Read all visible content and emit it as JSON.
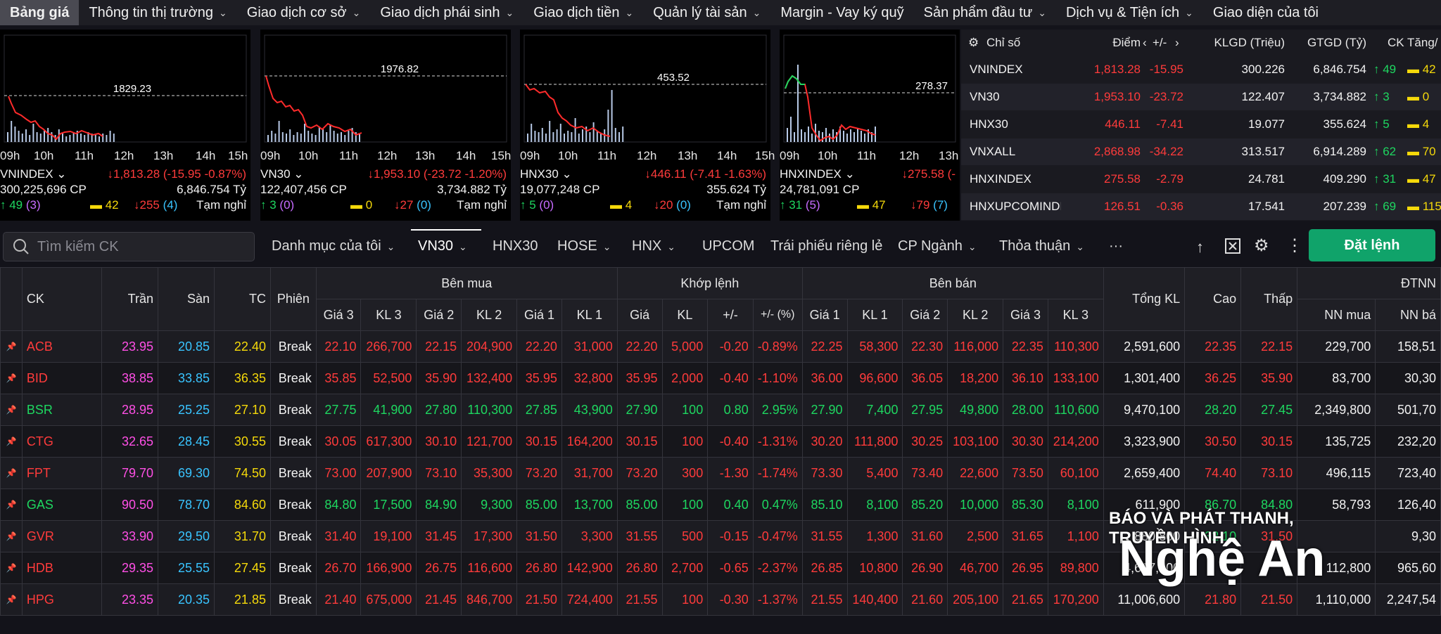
{
  "nav": [
    "Bảng giá",
    "Thông tin thị trường",
    "Giao dịch cơ sở",
    "Giao dịch phái sinh",
    "Giao dịch tiền",
    "Quản lý tài sản",
    "Margin - Vay ký quỹ",
    "Sản phẩm đầu tư",
    "Dịch vụ & Tiện ích",
    "Giao diện của tôi"
  ],
  "colors": {
    "ceiling": "#ff4fe6",
    "floor": "#39c4ff",
    "ref": "#f5d90a",
    "up": "#1ed760",
    "down": "#ff3b3b",
    "accent": "#10a36a"
  },
  "charts": [
    {
      "name": "VNINDEX",
      "ref": "1829.23",
      "times": [
        "09h",
        "10h",
        "11h",
        "12h",
        "13h",
        "14h",
        "15h"
      ],
      "value": "↓1,813.28 (-15.95 -0.87%)",
      "volume": "300,225,696 CP",
      "turnover": "6,846.754 Tỷ",
      "up": "49",
      "ceil": "(3)",
      "same": "42",
      "down": "255",
      "floor": "(4)",
      "status": "Tạm nghỉ"
    },
    {
      "name": "VN30",
      "ref": "1976.82",
      "times": [
        "09h",
        "10h",
        "11h",
        "12h",
        "13h",
        "14h",
        "15h"
      ],
      "value": "↓1,953.10 (-23.72 -1.20%)",
      "volume": "122,407,456 CP",
      "turnover": "3,734.882 Tỷ",
      "up": "3",
      "ceil": "(0)",
      "same": "0",
      "down": "27",
      "floor": "(0)",
      "status": "Tạm nghỉ"
    },
    {
      "name": "HNX30",
      "ref": "453.52",
      "times": [
        "09h",
        "10h",
        "11h",
        "12h",
        "13h",
        "14h",
        "15h"
      ],
      "value": "↓446.11 (-7.41 -1.63%)",
      "volume": "19,077,248 CP",
      "turnover": "355.624 Tỷ",
      "up": "5",
      "ceil": "(0)",
      "same": "4",
      "down": "20",
      "floor": "(0)",
      "status": "Tạm nghỉ"
    },
    {
      "name": "HNXINDEX",
      "ref": "278.37",
      "times": [
        "09h",
        "10h",
        "11h",
        "12h",
        "13h"
      ],
      "value": "↓275.58 (-",
      "volume": "24,781,091 CP",
      "turnover": "",
      "up": "31",
      "ceil": "(5)",
      "same": "47",
      "down": "79",
      "floor": "(7)",
      "status": ""
    }
  ],
  "index_table": {
    "headers": {
      "name": "Chỉ số",
      "point": "Điểm",
      "change": "+/-",
      "vol": "KLGD (Triệu)",
      "val": "GTGD (Tỷ)",
      "ck": "CK Tăng/"
    },
    "rows": [
      {
        "name": "VNINDEX",
        "point": "1,813.28",
        "change": "-15.95",
        "vol": "300.226",
        "val": "6,846.754",
        "up": "49",
        "same": "42"
      },
      {
        "name": "VN30",
        "point": "1,953.10",
        "change": "-23.72",
        "vol": "122.407",
        "val": "3,734.882",
        "up": "3",
        "same": "0"
      },
      {
        "name": "HNX30",
        "point": "446.11",
        "change": "-7.41",
        "vol": "19.077",
        "val": "355.624",
        "up": "5",
        "same": "4"
      },
      {
        "name": "VNXALL",
        "point": "2,868.98",
        "change": "-34.22",
        "vol": "313.517",
        "val": "6,914.289",
        "up": "62",
        "same": "70"
      },
      {
        "name": "HNXINDEX",
        "point": "275.58",
        "change": "-2.79",
        "vol": "24.781",
        "val": "409.290",
        "up": "31",
        "same": "47"
      },
      {
        "name": "HNXUPCOMINDE",
        "point": "126.51",
        "change": "-0.36",
        "vol": "17.541",
        "val": "207.239",
        "up": "69",
        "same": "115"
      }
    ]
  },
  "toolbar": {
    "search_placeholder": "Tìm kiếm CK",
    "tabs": [
      "Danh mục của tôi",
      "VN30",
      "HNX30",
      "HOSE",
      "HNX",
      "UPCOM",
      "Trái phiếu riêng lẻ",
      "CP Ngành",
      "Thỏa thuận"
    ],
    "more": "···",
    "order_button": "Đặt lệnh"
  },
  "grid": {
    "headers": {
      "ck": "CK",
      "tran": "Trần",
      "san": "Sàn",
      "tc": "TC",
      "phien": "Phiên",
      "ben_mua": "Bên mua",
      "khop": "Khớp lệnh",
      "ben_ban": "Bên bán",
      "tong": "Tổng KL",
      "cao": "Cao",
      "thap": "Thấp",
      "dtnn": "ĐTNN",
      "gia3": "Giá 3",
      "kl3": "KL 3",
      "gia2": "Giá 2",
      "kl2": "KL 2",
      "gia1": "Giá 1",
      "kl1": "KL 1",
      "gia": "Giá",
      "kl": "KL",
      "pm": "+/-",
      "pct": "+/- (%)",
      "nnmua": "NN mua",
      "nnban": "NN bá"
    },
    "rows": [
      [
        "ACB",
        "23.95",
        "20.85",
        "22.40",
        "Break",
        "22.10",
        "266,700",
        "22.15",
        "204,900",
        "22.20",
        "31,000",
        "22.20",
        "5,000",
        "-0.20",
        "-0.89%",
        "22.25",
        "58,300",
        "22.30",
        "116,000",
        "22.35",
        "110,300",
        "2,591,600",
        "22.35",
        "22.15",
        "229,700",
        "158,51"
      ],
      [
        "BID",
        "38.85",
        "33.85",
        "36.35",
        "Break",
        "35.85",
        "52,500",
        "35.90",
        "132,400",
        "35.95",
        "32,800",
        "35.95",
        "2,000",
        "-0.40",
        "-1.10%",
        "36.00",
        "96,600",
        "36.05",
        "18,200",
        "36.10",
        "133,100",
        "1,301,400",
        "36.25",
        "35.90",
        "83,700",
        "30,30"
      ],
      [
        "BSR",
        "28.95",
        "25.25",
        "27.10",
        "Break",
        "27.75",
        "41,900",
        "27.80",
        "110,300",
        "27.85",
        "43,900",
        "27.90",
        "100",
        "0.80",
        "2.95%",
        "27.90",
        "7,400",
        "27.95",
        "49,800",
        "28.00",
        "110,600",
        "9,470,100",
        "28.20",
        "27.45",
        "2,349,800",
        "501,70"
      ],
      [
        "CTG",
        "32.65",
        "28.45",
        "30.55",
        "Break",
        "30.05",
        "617,300",
        "30.10",
        "121,700",
        "30.15",
        "164,200",
        "30.15",
        "100",
        "-0.40",
        "-1.31%",
        "30.20",
        "111,800",
        "30.25",
        "103,100",
        "30.30",
        "214,200",
        "3,323,900",
        "30.50",
        "30.15",
        "135,725",
        "232,20"
      ],
      [
        "FPT",
        "79.70",
        "69.30",
        "74.50",
        "Break",
        "73.00",
        "207,900",
        "73.10",
        "35,300",
        "73.20",
        "31,700",
        "73.20",
        "300",
        "-1.30",
        "-1.74%",
        "73.30",
        "5,400",
        "73.40",
        "22,600",
        "73.50",
        "60,100",
        "2,659,400",
        "74.40",
        "73.10",
        "496,115",
        "723,40"
      ],
      [
        "GAS",
        "90.50",
        "78.70",
        "84.60",
        "Break",
        "84.80",
        "17,500",
        "84.90",
        "9,300",
        "85.00",
        "13,700",
        "85.00",
        "100",
        "0.40",
        "0.47%",
        "85.10",
        "8,100",
        "85.20",
        "10,000",
        "85.30",
        "8,100",
        "611,900",
        "86.70",
        "84.80",
        "58,793",
        "126,40"
      ],
      [
        "GVR",
        "33.90",
        "29.50",
        "31.70",
        "Break",
        "31.40",
        "19,100",
        "31.45",
        "17,300",
        "31.50",
        "3,300",
        "31.55",
        "500",
        "-0.15",
        "-0.47%",
        "31.55",
        "1,300",
        "31.60",
        "2,500",
        "31.65",
        "1,100",
        "880,800",
        "32.10",
        "31.50",
        "",
        "9,30"
      ],
      [
        "HDB",
        "29.35",
        "25.55",
        "27.45",
        "Break",
        "26.70",
        "166,900",
        "26.75",
        "116,600",
        "26.80",
        "142,900",
        "26.80",
        "2,700",
        "-0.65",
        "-2.37%",
        "26.85",
        "10,800",
        "26.90",
        "46,700",
        "26.95",
        "89,800",
        "4,617,100",
        "",
        "",
        "112,800",
        "965,60"
      ],
      [
        "HPG",
        "23.35",
        "20.35",
        "21.85",
        "Break",
        "21.40",
        "675,000",
        "21.45",
        "846,700",
        "21.50",
        "724,400",
        "21.55",
        "100",
        "-0.30",
        "-1.37%",
        "21.55",
        "140,400",
        "21.60",
        "205,100",
        "21.65",
        "170,200",
        "11,006,600",
        "21.80",
        "21.50",
        "1,110,000",
        "2,247,54"
      ]
    ],
    "row_colors": [
      [
        "d",
        "d",
        "d",
        "d",
        "d",
        "d",
        "d",
        "d",
        "d",
        "d",
        "d",
        "d",
        "d",
        "d",
        "d",
        "d"
      ],
      [
        "d",
        "d",
        "d",
        "d",
        "d",
        "d",
        "d",
        "d",
        "d",
        "d",
        "d",
        "d",
        "d",
        "d",
        "d",
        "d"
      ],
      [
        "u",
        "u",
        "u",
        "u",
        "u",
        "u",
        "u",
        "u",
        "u",
        "u",
        "u",
        "u",
        "u",
        "u",
        "u",
        "u"
      ],
      [
        "d",
        "d",
        "d",
        "d",
        "d",
        "d",
        "d",
        "d",
        "d",
        "d",
        "d",
        "d",
        "d",
        "d",
        "d",
        "d"
      ],
      [
        "d",
        "d",
        "d",
        "d",
        "d",
        "d",
        "d",
        "d",
        "d",
        "d",
        "d",
        "d",
        "d",
        "d",
        "d",
        "d"
      ],
      [
        "u",
        "u",
        "u",
        "u",
        "u",
        "u",
        "u",
        "u",
        "u",
        "u",
        "u",
        "u",
        "u",
        "u",
        "u",
        "u"
      ],
      [
        "d",
        "d",
        "d",
        "d",
        "d",
        "d",
        "d",
        "d",
        "d",
        "d",
        "d",
        "d",
        "d",
        "d",
        "d",
        "d"
      ],
      [
        "d",
        "d",
        "d",
        "d",
        "d",
        "d",
        "d",
        "d",
        "d",
        "d",
        "d",
        "d",
        "d",
        "d",
        "d",
        "d"
      ],
      [
        "d",
        "d",
        "d",
        "d",
        "d",
        "d",
        "d",
        "d",
        "d",
        "d",
        "d",
        "d",
        "d",
        "d",
        "d",
        "d"
      ]
    ]
  },
  "watermark": {
    "line1": "BÁO VÀ PHÁT THANH, TRUYỀN HÌNH",
    "line2": "Nghệ An"
  }
}
